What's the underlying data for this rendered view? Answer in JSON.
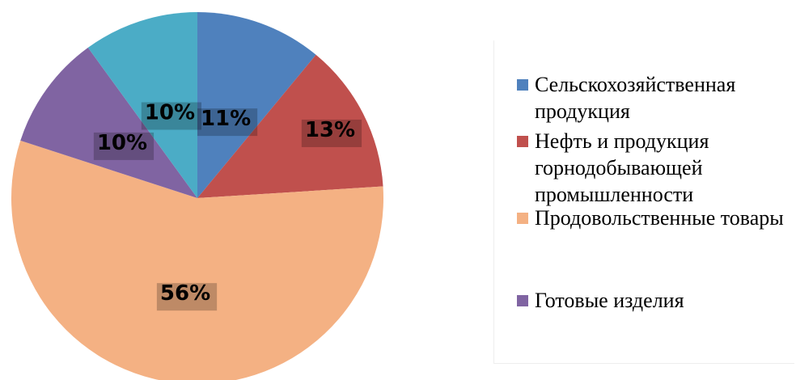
{
  "chart_data": {
    "type": "pie",
    "categories": [
      "Сельскохозяйственная продукция",
      "Нефть и продукция горнодобывающей промышленности",
      "Продовольственные товары",
      "Готовые изделия",
      null
    ],
    "values": [
      11,
      13,
      56,
      10,
      10
    ],
    "value_labels": [
      "11%",
      "13%",
      "56%",
      "10%",
      "10%"
    ],
    "colors": [
      "#4f81bd",
      "#c0504d",
      "#f4b183",
      "#8064a2",
      "#4bacc6"
    ],
    "legend": "right"
  }
}
